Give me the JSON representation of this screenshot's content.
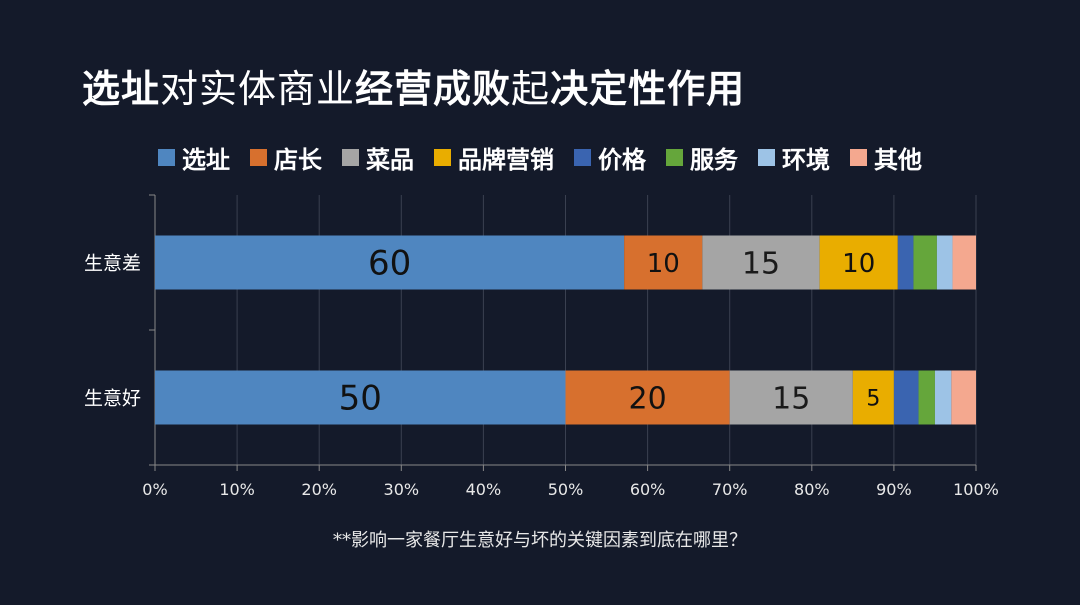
{
  "title": {
    "parts": [
      {
        "text": "选址",
        "bold": true
      },
      {
        "text": "对实体商业",
        "bold": false
      },
      {
        "text": "经营成败",
        "bold": true
      },
      {
        "text": "起",
        "bold": false
      },
      {
        "text": "决定性作用",
        "bold": true
      }
    ]
  },
  "footnote": "**影响一家餐厅生意好与坏的关键因素到底在哪里？",
  "chart_data": {
    "type": "bar",
    "orientation": "horizontal",
    "stacked": "percent",
    "categories": [
      "生意差",
      "生意好"
    ],
    "series": [
      {
        "name": "选址",
        "color": "#4f86c0",
        "values": [
          60,
          50
        ],
        "labels": [
          "60",
          "50"
        ]
      },
      {
        "name": "店长",
        "color": "#d7702e",
        "values": [
          10,
          20
        ],
        "labels": [
          "10",
          "20"
        ]
      },
      {
        "name": "菜品",
        "color": "#a5a5a5",
        "values": [
          15,
          15
        ],
        "labels": [
          "15",
          "15"
        ]
      },
      {
        "name": "品牌营销",
        "color": "#e9ad00",
        "values": [
          10,
          5
        ],
        "labels": [
          "10",
          "5"
        ]
      },
      {
        "name": "价格",
        "color": "#3a64b0",
        "values": [
          2,
          3
        ],
        "labels": [
          "",
          ""
        ]
      },
      {
        "name": "服务",
        "color": "#65a63b",
        "values": [
          3,
          2
        ],
        "labels": [
          "",
          ""
        ]
      },
      {
        "name": "环境",
        "color": "#9dc3e6",
        "values": [
          2,
          2
        ],
        "labels": [
          "",
          ""
        ]
      },
      {
        "name": "其他",
        "color": "#f4a88f",
        "values": [
          3,
          3
        ],
        "labels": [
          "",
          ""
        ]
      }
    ],
    "x_ticks": [
      "0%",
      "10%",
      "20%",
      "30%",
      "40%",
      "50%",
      "60%",
      "70%",
      "80%",
      "90%",
      "100%"
    ],
    "xlim": [
      0,
      100
    ],
    "grid": true,
    "legend_position": "top"
  }
}
